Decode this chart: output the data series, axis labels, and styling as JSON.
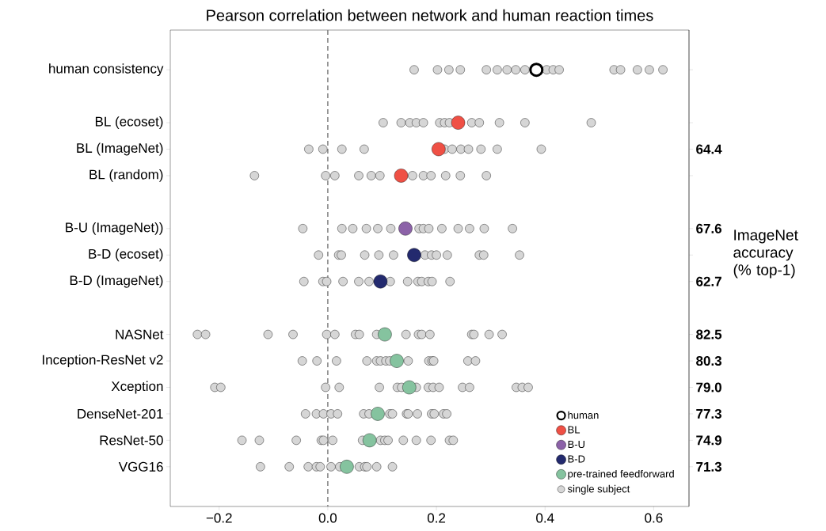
{
  "chart_data": {
    "type": "scatter",
    "orientation": "horizontal",
    "title": "Pearson correlation between network and human reaction times",
    "y2label": "ImageNet accuracy (% top-1)",
    "categories": [
      "human consistency",
      null,
      "BL (ecoset)",
      "BL (ImageNet)",
      "BL (random)",
      null,
      "B-U (ImageNet))",
      "B-D (ecoset)",
      "B-D (ImageNet)",
      null,
      "NASNet",
      "Inception-ResNet v2",
      "Xception",
      "DenseNet-201",
      "ResNet-50",
      "VGG16"
    ],
    "xlim": [
      -0.29,
      0.665
    ],
    "xticks": [
      {
        "value": -0.2,
        "label": "−0.2"
      },
      {
        "value": 0,
        "label": "0.0"
      },
      {
        "value": 0.2,
        "label": "0.2"
      },
      {
        "value": 0.4,
        "label": "0.4"
      },
      {
        "value": 0.6,
        "label": "0.6"
      }
    ],
    "marker": "circle",
    "legend": "bottom right",
    "ref_lines": [
      {
        "axis": "x",
        "value": 0,
        "color": "#808080",
        "line_style": "dashed"
      }
    ],
    "series": [
      {
        "name": "single subject",
        "color": "#d6d6d6",
        "x": [
          "human consistency",
          "human consistency",
          "human consistency",
          "human consistency",
          "human consistency",
          "human consistency",
          "human consistency",
          "human consistency",
          "human consistency",
          "human consistency",
          "human consistency",
          "human consistency",
          "human consistency",
          "human consistency",
          "human consistency",
          "human consistency",
          "human consistency",
          "BL (ecoset)",
          "BL (ecoset)",
          "BL (ecoset)",
          "BL (ecoset)",
          "BL (ecoset)",
          "BL (ecoset)",
          "BL (ecoset)",
          "BL (ecoset)",
          "BL (ecoset)",
          "BL (ecoset)",
          "BL (ecoset)",
          "BL (ecoset)",
          "BL (ecoset)",
          "BL (ImageNet)",
          "BL (ImageNet)",
          "BL (ImageNet)",
          "BL (ImageNet)",
          "BL (ImageNet)",
          "BL (ImageNet)",
          "BL (ImageNet)",
          "BL (ImageNet)",
          "BL (ImageNet)",
          "BL (ImageNet)",
          "BL (ImageNet)",
          "BL (random)",
          "BL (random)",
          "BL (random)",
          "BL (random)",
          "BL (random)",
          "BL (random)",
          "BL (random)",
          "BL (random)",
          "BL (random)",
          "BL (random)",
          "BL (random)",
          "BL (random)",
          "B-U (ImageNet))",
          "B-U (ImageNet))",
          "B-U (ImageNet))",
          "B-U (ImageNet))",
          "B-U (ImageNet))",
          "B-U (ImageNet))",
          "B-U (ImageNet))",
          "B-U (ImageNet))",
          "B-U (ImageNet))",
          "B-U (ImageNet))",
          "B-U (ImageNet))",
          "B-U (ImageNet))",
          "B-U (ImageNet))",
          "B-U (ImageNet))",
          "B-D (ecoset)",
          "B-D (ecoset)",
          "B-D (ecoset)",
          "B-D (ecoset)",
          "B-D (ecoset)",
          "B-D (ecoset)",
          "B-D (ecoset)",
          "B-D (ecoset)",
          "B-D (ecoset)",
          "B-D (ecoset)",
          "B-D (ecoset)",
          "B-D (ecoset)",
          "B-D (ecoset)",
          "B-D (ImageNet)",
          "B-D (ImageNet)",
          "B-D (ImageNet)",
          "B-D (ImageNet)",
          "B-D (ImageNet)",
          "B-D (ImageNet)",
          "B-D (ImageNet)",
          "B-D (ImageNet)",
          "B-D (ImageNet)",
          "B-D (ImageNet)",
          "B-D (ImageNet)",
          "B-D (ImageNet)",
          "B-D (ImageNet)",
          "NASNet",
          "NASNet",
          "NASNet",
          "NASNet",
          "NASNet",
          "NASNet",
          "NASNet",
          "NASNet",
          "NASNet",
          "NASNet",
          "NASNet",
          "NASNet",
          "NASNet",
          "NASNet",
          "NASNet",
          "NASNet",
          "NASNet",
          "Inception-ResNet v2",
          "Inception-ResNet v2",
          "Inception-ResNet v2",
          "Inception-ResNet v2",
          "Inception-ResNet v2",
          "Inception-ResNet v2",
          "Inception-ResNet v2",
          "Inception-ResNet v2",
          "Inception-ResNet v2",
          "Inception-ResNet v2",
          "Inception-ResNet v2",
          "Inception-ResNet v2",
          "Inception-ResNet v2",
          "Inception-ResNet v2",
          "Xception",
          "Xception",
          "Xception",
          "Xception",
          "Xception",
          "Xception",
          "Xception",
          "Xception",
          "Xception",
          "Xception",
          "Xception",
          "Xception",
          "Xception",
          "Xception",
          "Xception",
          "Xception",
          "DenseNet-201",
          "DenseNet-201",
          "DenseNet-201",
          "DenseNet-201",
          "DenseNet-201",
          "DenseNet-201",
          "DenseNet-201",
          "DenseNet-201",
          "DenseNet-201",
          "DenseNet-201",
          "DenseNet-201",
          "DenseNet-201",
          "DenseNet-201",
          "DenseNet-201",
          "DenseNet-201",
          "DenseNet-201",
          "ResNet-50",
          "ResNet-50",
          "ResNet-50",
          "ResNet-50",
          "ResNet-50",
          "ResNet-50",
          "ResNet-50",
          "ResNet-50",
          "ResNet-50",
          "ResNet-50",
          "ResNet-50",
          "ResNet-50",
          "ResNet-50",
          "ResNet-50",
          "ResNet-50",
          "VGG16",
          "VGG16",
          "VGG16",
          "VGG16",
          "VGG16",
          "VGG16",
          "VGG16",
          "VGG16",
          "VGG16",
          "VGG16",
          "VGG16",
          "VGG16"
        ],
        "values": [
          0.159,
          0.202,
          0.223,
          0.244,
          0.292,
          0.312,
          0.33,
          0.346,
          0.363,
          0.403,
          0.415,
          0.426,
          0.527,
          0.539,
          0.57,
          0.592,
          0.617,
          0.102,
          0.135,
          0.151,
          0.163,
          0.176,
          0.206,
          0.215,
          0.224,
          0.265,
          0.279,
          0.316,
          0.363,
          0.485,
          -0.035,
          -0.009,
          0.026,
          0.067,
          0.215,
          0.229,
          0.245,
          0.259,
          0.282,
          0.312,
          0.393,
          -0.135,
          -0.004,
          0.013,
          0.057,
          0.08,
          0.096,
          0.156,
          0.176,
          0.19,
          0.217,
          0.244,
          0.292,
          -0.046,
          0.026,
          0.046,
          0.071,
          0.092,
          0.116,
          0.168,
          0.176,
          0.186,
          0.21,
          0.24,
          0.261,
          0.288,
          0.34,
          -0.017,
          0.02,
          0.025,
          0.068,
          0.094,
          0.121,
          0.179,
          0.191,
          0.2,
          0.22,
          0.279,
          0.287,
          0.353,
          -0.044,
          -0.009,
          -0.002,
          0.028,
          0.057,
          0.076,
          0.115,
          0.147,
          0.166,
          0.173,
          0.185,
          0.192,
          0.225,
          -0.24,
          -0.225,
          -0.11,
          -0.064,
          -0.002,
          0.013,
          0.051,
          0.058,
          0.09,
          0.144,
          0.167,
          0.173,
          0.188,
          0.265,
          0.269,
          0.297,
          0.321,
          -0.047,
          -0.02,
          0.016,
          0.072,
          0.09,
          0.097,
          0.107,
          0.114,
          0.148,
          0.186,
          0.192,
          0.195,
          0.258,
          0.272,
          -0.208,
          -0.197,
          -0.004,
          0.021,
          0.095,
          0.128,
          0.136,
          0.163,
          0.185,
          0.194,
          0.205,
          0.248,
          0.261,
          0.347,
          0.358,
          0.369,
          -0.041,
          -0.021,
          -0.008,
          0.006,
          0.018,
          0.066,
          0.076,
          0.114,
          0.119,
          0.145,
          0.148,
          0.165,
          0.191,
          0.196,
          0.213,
          0.219,
          -0.158,
          -0.126,
          -0.058,
          -0.012,
          -0.008,
          0.009,
          0.064,
          0.097,
          0.105,
          0.111,
          0.139,
          0.163,
          0.19,
          0.224,
          0.231,
          -0.124,
          -0.071,
          -0.036,
          -0.021,
          -0.014,
          0.006,
          0.022,
          0.058,
          0.068,
          0.072,
          0.09,
          0.119
        ]
      },
      {
        "name": "human",
        "color": "#000000",
        "values": [
          0.384,
          null,
          null,
          null,
          null,
          null,
          null,
          null,
          null,
          null,
          null,
          null,
          null,
          null,
          null,
          null
        ]
      },
      {
        "name": "BL",
        "color": "#ef5045",
        "values": [
          null,
          null,
          0.24,
          0.204,
          0.135,
          null,
          null,
          null,
          null,
          null,
          null,
          null,
          null,
          null,
          null,
          null
        ]
      },
      {
        "name": "B-U",
        "color": "#8c62a8",
        "values": [
          null,
          null,
          null,
          null,
          null,
          null,
          0.143,
          null,
          null,
          null,
          null,
          null,
          null,
          null,
          null,
          null
        ]
      },
      {
        "name": "B-D",
        "color": "#232a6e",
        "values": [
          null,
          null,
          null,
          null,
          null,
          null,
          null,
          0.159,
          0.097,
          null,
          null,
          null,
          null,
          null,
          null,
          null
        ]
      },
      {
        "name": "pre-trained feedforward",
        "color": "#85c39f",
        "values": [
          null,
          null,
          null,
          null,
          null,
          null,
          null,
          null,
          null,
          null,
          0.105,
          0.127,
          0.15,
          0.092,
          0.077,
          0.035
        ]
      }
    ],
    "y2_categories": [
      null,
      null,
      null,
      "64.4",
      null,
      null,
      "67.6",
      null,
      "62.7",
      null,
      "82.5",
      "80.3",
      "79.0",
      "77.3",
      "74.9",
      "71.3"
    ]
  }
}
